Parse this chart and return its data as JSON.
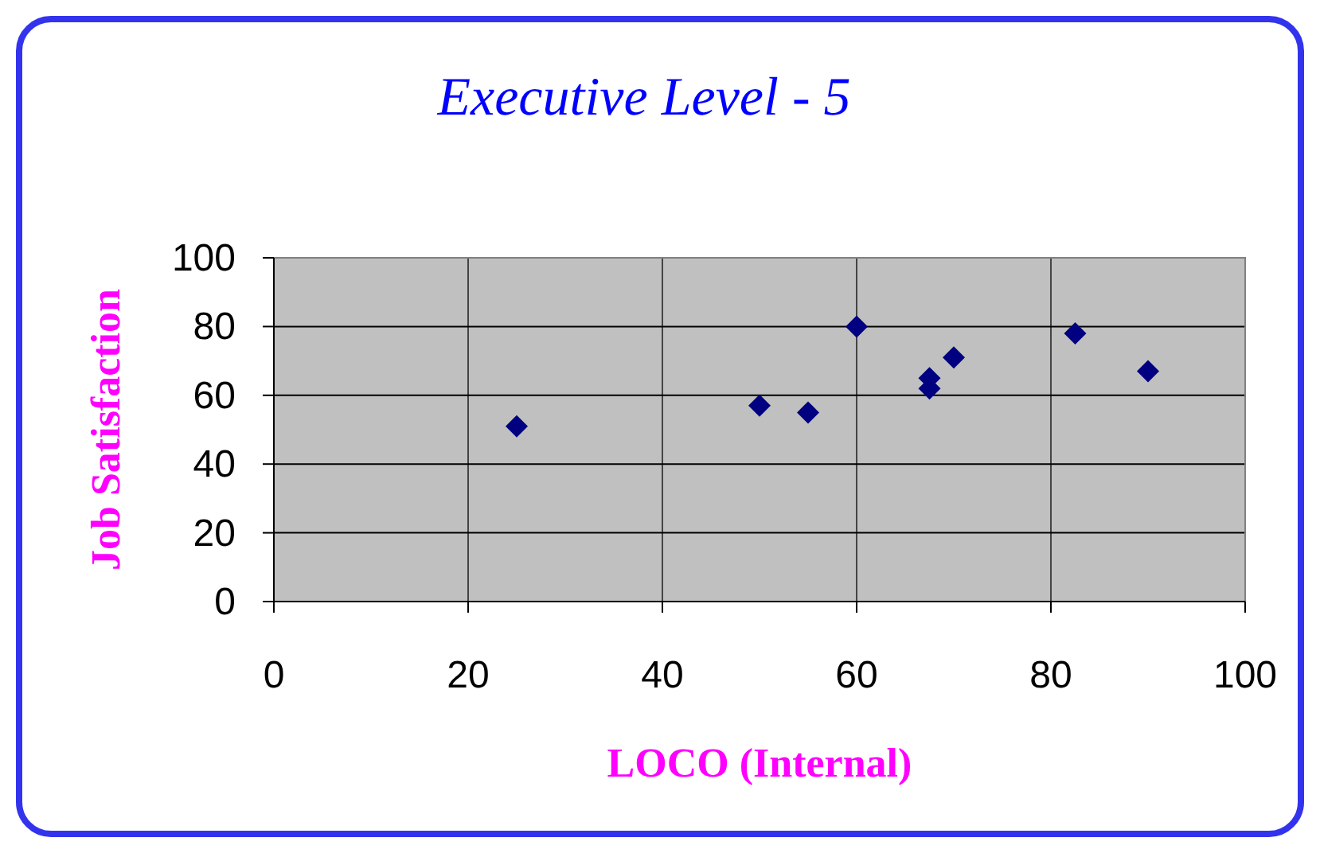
{
  "chart_data": {
    "type": "scatter",
    "title": "Executive Level - 5",
    "xlabel": "LOCO (Internal)",
    "ylabel": "Job Satisfaction",
    "x": [
      25,
      50,
      55,
      60,
      67.5,
      67.5,
      70,
      82.5,
      90
    ],
    "series": [
      {
        "color": "#000080",
        "values": [
          51,
          57,
          55,
          80,
          65,
          62,
          71,
          78,
          67
        ]
      }
    ],
    "xlim": [
      0,
      100
    ],
    "ylim": [
      0,
      100
    ],
    "xticks": [
      0,
      20,
      40,
      60,
      80,
      100
    ],
    "yticks": [
      0,
      20,
      40,
      60,
      80,
      100
    ],
    "grid": true,
    "marker": "diamond"
  }
}
